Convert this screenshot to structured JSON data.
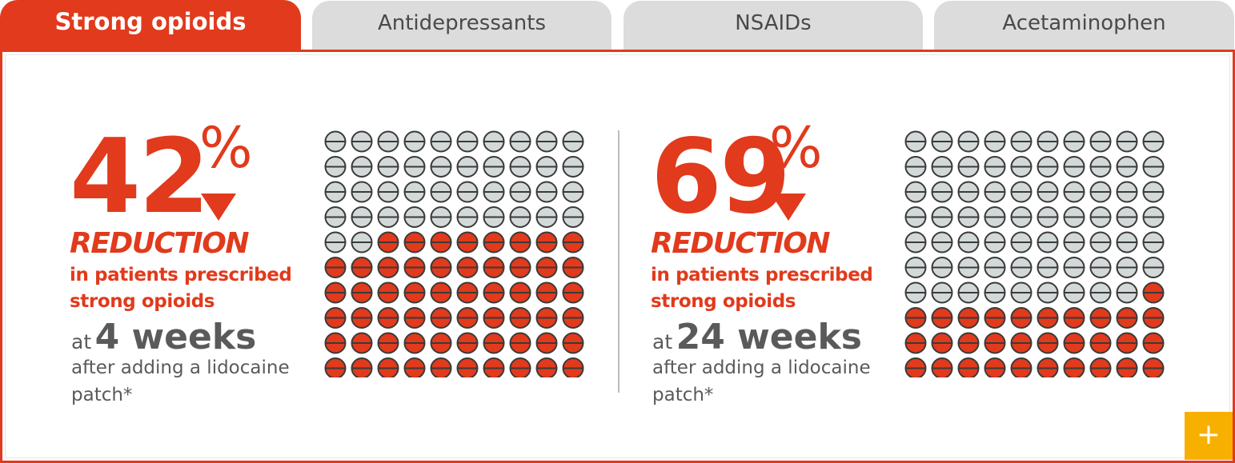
{
  "tabs": [
    {
      "label": "Strong opioids",
      "active": true
    },
    {
      "label": "Antidepressants",
      "active": false
    },
    {
      "label": "NSAIDs",
      "active": false
    },
    {
      "label": "Acetaminophen",
      "active": false
    }
  ],
  "panels": [
    {
      "number": "42",
      "percent": "%",
      "reduction_label": "REDUCTION",
      "description": "in patients prescribed strong opioids",
      "weeks_prefix": "at",
      "weeks_value": "4 weeks",
      "after_text": "after adding a lidocaine patch*",
      "pill_grid": {
        "total": 100,
        "highlighted": 58
      }
    },
    {
      "number": "69",
      "percent": "%",
      "reduction_label": "REDUCTION",
      "description": "in patients prescribed strong opioids",
      "weeks_prefix": "at",
      "weeks_value": "24 weeks",
      "after_text": "after adding a lidocaine patch*",
      "pill_grid": {
        "total": 100,
        "highlighted": 31
      }
    }
  ],
  "expand_button": {
    "icon": "plus-icon",
    "glyph": "+"
  },
  "colors": {
    "accent": "#e13a1c",
    "pill_gray": "#d3d8d8",
    "pill_red": "#e13a1c",
    "expand": "#f7b000"
  }
}
